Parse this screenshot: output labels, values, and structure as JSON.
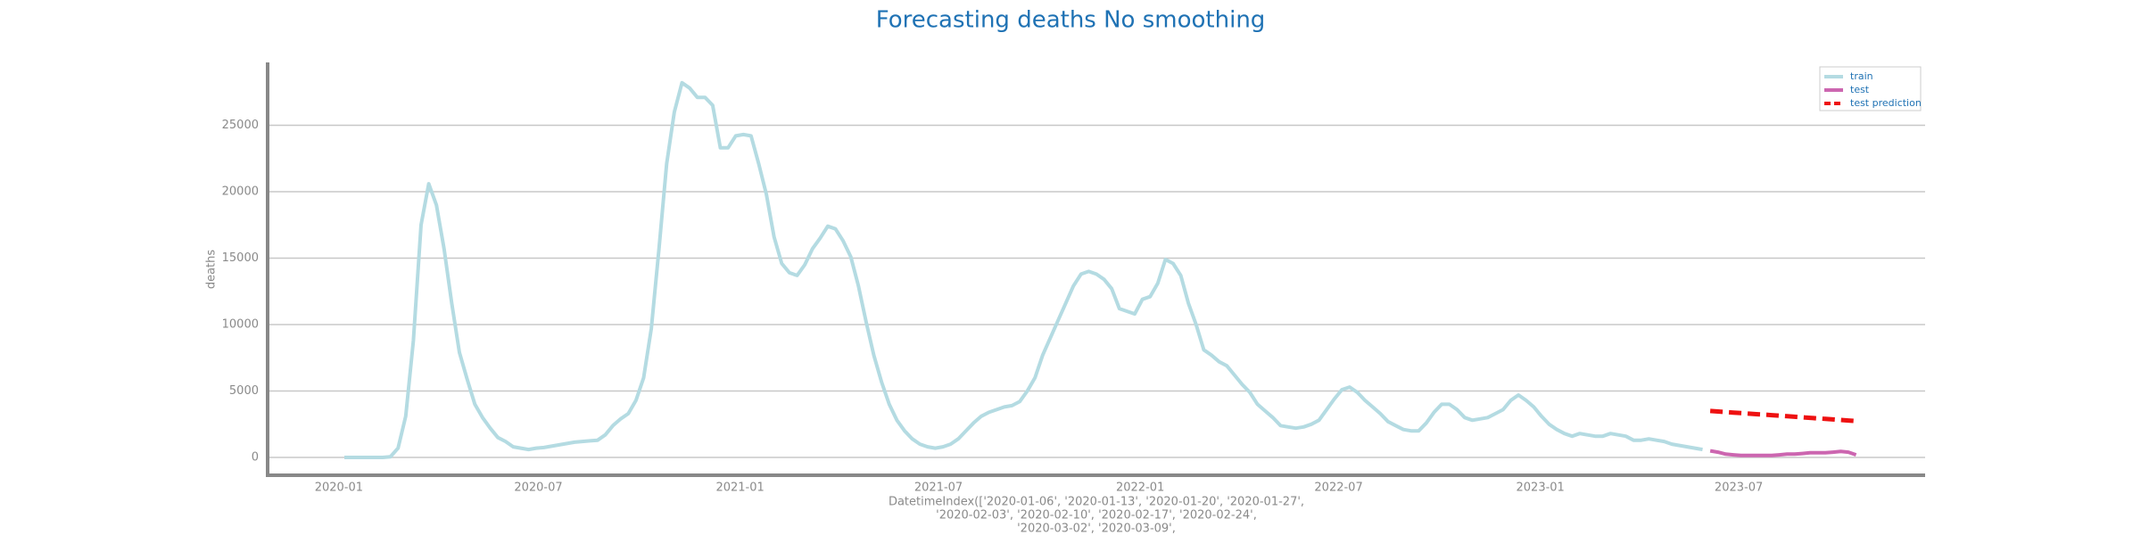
{
  "chart_data": {
    "type": "line",
    "title": "Forecasting deaths No smoothing",
    "ylabel": "deaths",
    "xlabel": [
      "DatetimeIndex(['2020-01-06', '2020-01-13', '2020-01-20', '2020-01-27',",
      "'2020-02-03', '2020-02-10', '2020-02-17', '2020-02-24',",
      "'2020-03-02', '2020-03-09',"
    ],
    "xlim": [
      "2019-10-28",
      "2023-12-18"
    ],
    "ylim": [
      -1340,
      29730
    ],
    "yticks": [
      0,
      5000,
      10000,
      15000,
      20000,
      25000
    ],
    "xticks": [
      {
        "value": "2020-01-01",
        "label": "2020-01"
      },
      {
        "value": "2020-07-01",
        "label": "2020-07"
      },
      {
        "value": "2021-01-01",
        "label": "2021-01"
      },
      {
        "value": "2021-07-01",
        "label": "2021-07"
      },
      {
        "value": "2022-01-01",
        "label": "2022-01"
      },
      {
        "value": "2022-07-01",
        "label": "2022-07"
      },
      {
        "value": "2023-01-01",
        "label": "2023-01"
      },
      {
        "value": "2023-07-01",
        "label": "2023-07"
      }
    ],
    "grid": "y",
    "legend": "upper right",
    "series": [
      {
        "name": "train",
        "color": "#b4dbe2",
        "style": "solid",
        "x": [
          "2020-01-06",
          "2020-01-13",
          "2020-01-20",
          "2020-01-27",
          "2020-02-03",
          "2020-02-10",
          "2020-02-17",
          "2020-02-24",
          "2020-03-02",
          "2020-03-09",
          "2020-03-16",
          "2020-03-23",
          "2020-03-30",
          "2020-04-06",
          "2020-04-13",
          "2020-04-20",
          "2020-04-27",
          "2020-05-04",
          "2020-05-11",
          "2020-05-18",
          "2020-05-25",
          "2020-06-01",
          "2020-06-08",
          "2020-06-15",
          "2020-06-22",
          "2020-06-29",
          "2020-07-06",
          "2020-07-13",
          "2020-07-20",
          "2020-07-27",
          "2020-08-03",
          "2020-08-10",
          "2020-08-17",
          "2020-08-24",
          "2020-08-31",
          "2020-09-07",
          "2020-09-14",
          "2020-09-21",
          "2020-09-28",
          "2020-10-05",
          "2020-10-12",
          "2020-10-19",
          "2020-10-26",
          "2020-11-02",
          "2020-11-09",
          "2020-11-16",
          "2020-11-23",
          "2020-11-30",
          "2020-12-07",
          "2020-12-14",
          "2020-12-21",
          "2020-12-28",
          "2021-01-04",
          "2021-01-11",
          "2021-01-18",
          "2021-01-25",
          "2021-02-01",
          "2021-02-08",
          "2021-02-15",
          "2021-02-22",
          "2021-03-01",
          "2021-03-08",
          "2021-03-15",
          "2021-03-22",
          "2021-03-29",
          "2021-04-05",
          "2021-04-12",
          "2021-04-19",
          "2021-04-26",
          "2021-05-03",
          "2021-05-10",
          "2021-05-17",
          "2021-05-24",
          "2021-05-31",
          "2021-06-07",
          "2021-06-14",
          "2021-06-21",
          "2021-06-28",
          "2021-07-05",
          "2021-07-12",
          "2021-07-19",
          "2021-07-26",
          "2021-08-02",
          "2021-08-09",
          "2021-08-16",
          "2021-08-23",
          "2021-08-30",
          "2021-09-06",
          "2021-09-13",
          "2021-09-20",
          "2021-09-27",
          "2021-10-04",
          "2021-10-11",
          "2021-10-18",
          "2021-10-25",
          "2021-11-01",
          "2021-11-08",
          "2021-11-15",
          "2021-11-22",
          "2021-11-29",
          "2021-12-06",
          "2021-12-13",
          "2021-12-20",
          "2021-12-27",
          "2022-01-03",
          "2022-01-10",
          "2022-01-17",
          "2022-01-24",
          "2022-01-31",
          "2022-02-07",
          "2022-02-14",
          "2022-02-21",
          "2022-02-28",
          "2022-03-07",
          "2022-03-14",
          "2022-03-21",
          "2022-03-28",
          "2022-04-04",
          "2022-04-11",
          "2022-04-18",
          "2022-04-25",
          "2022-05-02",
          "2022-05-09",
          "2022-05-16",
          "2022-05-23",
          "2022-05-30",
          "2022-06-06",
          "2022-06-13",
          "2022-06-20",
          "2022-06-27",
          "2022-07-04",
          "2022-07-11",
          "2022-07-18",
          "2022-07-25",
          "2022-08-01",
          "2022-08-08",
          "2022-08-15",
          "2022-08-22",
          "2022-08-29",
          "2022-09-05",
          "2022-09-12",
          "2022-09-19",
          "2022-09-26",
          "2022-10-03",
          "2022-10-10",
          "2022-10-17",
          "2022-10-24",
          "2022-10-31",
          "2022-11-07",
          "2022-11-14",
          "2022-11-21",
          "2022-11-28",
          "2022-12-05",
          "2022-12-12",
          "2022-12-19",
          "2022-12-26",
          "2023-01-02",
          "2023-01-09",
          "2023-01-16",
          "2023-01-23",
          "2023-01-30",
          "2023-02-06",
          "2023-02-13",
          "2023-02-20",
          "2023-02-27",
          "2023-03-06",
          "2023-03-13",
          "2023-03-20",
          "2023-03-27",
          "2023-04-03",
          "2023-04-10",
          "2023-04-17",
          "2023-04-24",
          "2023-05-01",
          "2023-05-08",
          "2023-05-15",
          "2023-05-22",
          "2023-05-29"
        ],
        "values": [
          0,
          0,
          0,
          0,
          0,
          0,
          50,
          700,
          3100,
          8800,
          17500,
          20600,
          19000,
          15700,
          11600,
          7900,
          5900,
          4000,
          3000,
          2200,
          1500,
          1200,
          800,
          700,
          600,
          700,
          750,
          850,
          950,
          1050,
          1150,
          1200,
          1250,
          1300,
          1700,
          2400,
          2900,
          3300,
          4300,
          6000,
          9700,
          15700,
          22100,
          26000,
          28200,
          27800,
          27100,
          27100,
          26500,
          23300,
          23300,
          24200,
          24300,
          24200,
          22100,
          19800,
          16600,
          14600,
          13900,
          13700,
          14500,
          15700,
          16500,
          17400,
          17200,
          16300,
          15100,
          12900,
          10200,
          7700,
          5700,
          4000,
          2800,
          2000,
          1400,
          1000,
          800,
          700,
          800,
          1000,
          1400,
          2000,
          2600,
          3100,
          3400,
          3600,
          3800,
          3900,
          4200,
          5000,
          6000,
          7700,
          9000,
          10300,
          11600,
          12900,
          13800,
          14000,
          13800,
          13400,
          12700,
          11200,
          11000,
          10800,
          11900,
          12100,
          13100,
          14900,
          14600,
          13700,
          11600,
          10000,
          8100,
          7700,
          7200,
          6900,
          6200,
          5500,
          4900,
          4000,
          3500,
          3000,
          2400,
          2300,
          2200,
          2300,
          2500,
          2800,
          3600,
          4400,
          5100,
          5300,
          4900,
          4300,
          3800,
          3300,
          2700,
          2400,
          2100,
          2000,
          2000,
          2600,
          3400,
          4000,
          4000,
          3600,
          3000,
          2800,
          2900,
          3000,
          3300,
          3600,
          4300,
          4700,
          4300,
          3800,
          3100,
          2500,
          2100,
          1800,
          1600,
          1800,
          1700,
          1600,
          1600,
          1800,
          1700,
          1600,
          1300,
          1300,
          1400,
          1300,
          1200,
          1000,
          900,
          800,
          700,
          600
        ]
      },
      {
        "name": "test",
        "color": "#cc66b0",
        "style": "solid",
        "x": [
          "2023-06-05",
          "2023-06-12",
          "2023-06-19",
          "2023-06-26",
          "2023-07-03",
          "2023-07-10",
          "2023-07-17",
          "2023-07-24",
          "2023-07-31",
          "2023-08-07",
          "2023-08-14",
          "2023-08-21",
          "2023-08-28",
          "2023-09-04",
          "2023-09-11",
          "2023-09-18",
          "2023-09-25",
          "2023-10-02",
          "2023-10-09",
          "2023-10-16"
        ],
        "values": [
          500,
          400,
          250,
          200,
          150,
          150,
          150,
          150,
          150,
          200,
          250,
          250,
          300,
          350,
          350,
          350,
          400,
          450,
          400,
          200
        ]
      },
      {
        "name": "test prediction",
        "color": "#ee1111",
        "style": "dashed",
        "x": [
          "2023-06-05",
          "2023-06-12",
          "2023-06-19",
          "2023-06-26",
          "2023-07-03",
          "2023-07-10",
          "2023-07-17",
          "2023-07-24",
          "2023-07-31",
          "2023-08-07",
          "2023-08-14",
          "2023-08-21",
          "2023-08-28",
          "2023-09-04",
          "2023-09-11",
          "2023-09-18",
          "2023-09-25",
          "2023-10-02",
          "2023-10-09",
          "2023-10-16"
        ],
        "values": [
          3500,
          3460,
          3420,
          3380,
          3340,
          3300,
          3260,
          3220,
          3180,
          3140,
          3100,
          3060,
          3020,
          2980,
          2940,
          2900,
          2860,
          2820,
          2780,
          2740
        ]
      }
    ]
  }
}
